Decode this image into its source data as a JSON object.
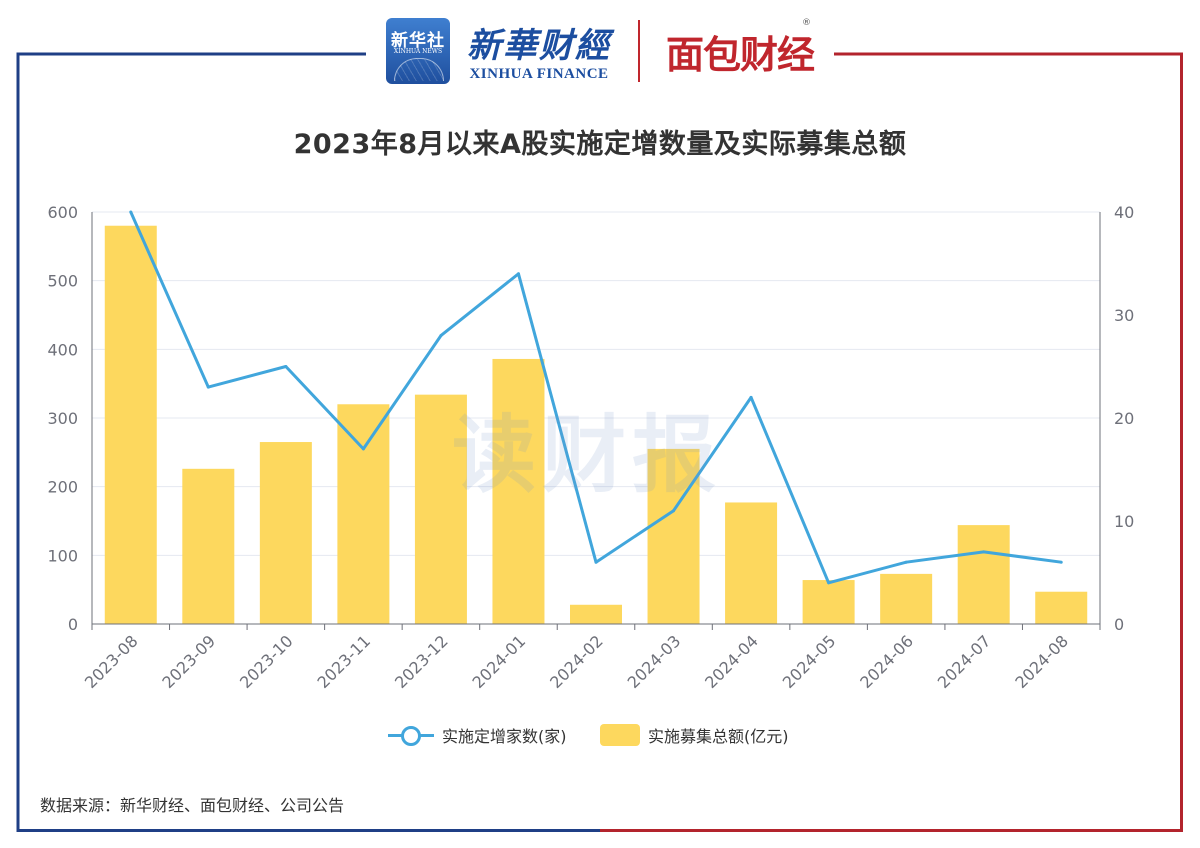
{
  "header": {
    "xinhua_news_cn": "新华社",
    "xinhua_news_en": "XINHUA NEWS",
    "xinhua_finance_cn": "新華财經",
    "xinhua_finance_en": "XINHUA FINANCE",
    "mianbao_cn": "面包财经",
    "registered_mark": "®"
  },
  "watermark": "读财报",
  "source": "数据来源：新华财经、面包财经、公司公告",
  "colors": {
    "frame_left": "#1f3f86",
    "frame_right": "#b3242d",
    "bar": "#fdd85e",
    "line": "#41a6dc",
    "grid": "#e4e8f1",
    "axis_text": "#6e7079"
  },
  "chart_data": {
    "type": "bar",
    "title": "2023年8月以来A股实施定增数量及实际募集总额",
    "categories": [
      "2023-08",
      "2023-09",
      "2023-10",
      "2023-11",
      "2023-12",
      "2024-01",
      "2024-02",
      "2024-03",
      "2024-04",
      "2024-05",
      "2024-06",
      "2024-07",
      "2024-08"
    ],
    "series": [
      {
        "name": "实施募集总额(亿元)",
        "type": "bar",
        "axis": "left",
        "values": [
          580,
          226,
          265,
          320,
          334,
          386,
          28,
          255,
          177,
          64,
          73,
          144,
          47
        ]
      },
      {
        "name": "实施定增家数(家)",
        "type": "line",
        "axis": "right",
        "values": [
          40,
          23,
          25,
          17,
          28,
          34,
          6,
          11,
          22,
          4,
          6,
          7,
          6
        ]
      }
    ],
    "y_left": {
      "min": 0,
      "max": 600,
      "ticks": [
        0,
        100,
        200,
        300,
        400,
        500,
        600
      ]
    },
    "y_right": {
      "min": 0,
      "max": 40,
      "ticks": [
        0,
        10,
        20,
        30,
        40
      ]
    },
    "grid": true,
    "legend_position": "bottom"
  }
}
